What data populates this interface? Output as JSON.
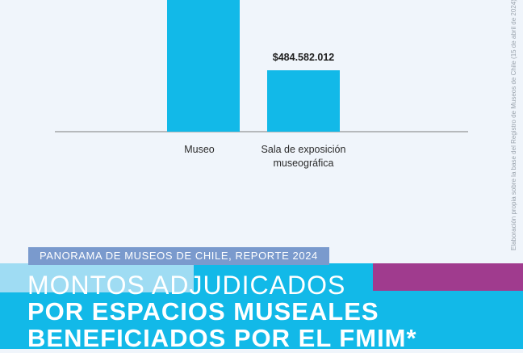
{
  "chart_data": {
    "type": "bar",
    "categories": [
      "Museo",
      "Sala de exposición museográfica"
    ],
    "category_lines": [
      [
        "Museo"
      ],
      [
        "Sala de exposición",
        "museográfica"
      ]
    ],
    "values": [
      1900000000,
      484582012
    ],
    "data_labels": [
      "",
      "$484.582.012"
    ],
    "colors": {
      "bar": "#12b9e8",
      "axis": "#7d7d7d"
    }
  },
  "source_note": "Elaboración propia sobre la base del Registro de Museos de Chile (15 de abril de 2024)",
  "banner": {
    "report_tag": "PANORAMA DE MUSEOS DE CHILE, REPORTE 2024",
    "title_line1": "MONTOS ADJUDICADOS",
    "title_line2": "POR ESPACIOS MUSEALES",
    "title_line3": "BENEFICIADOS POR EL FMIM*"
  }
}
